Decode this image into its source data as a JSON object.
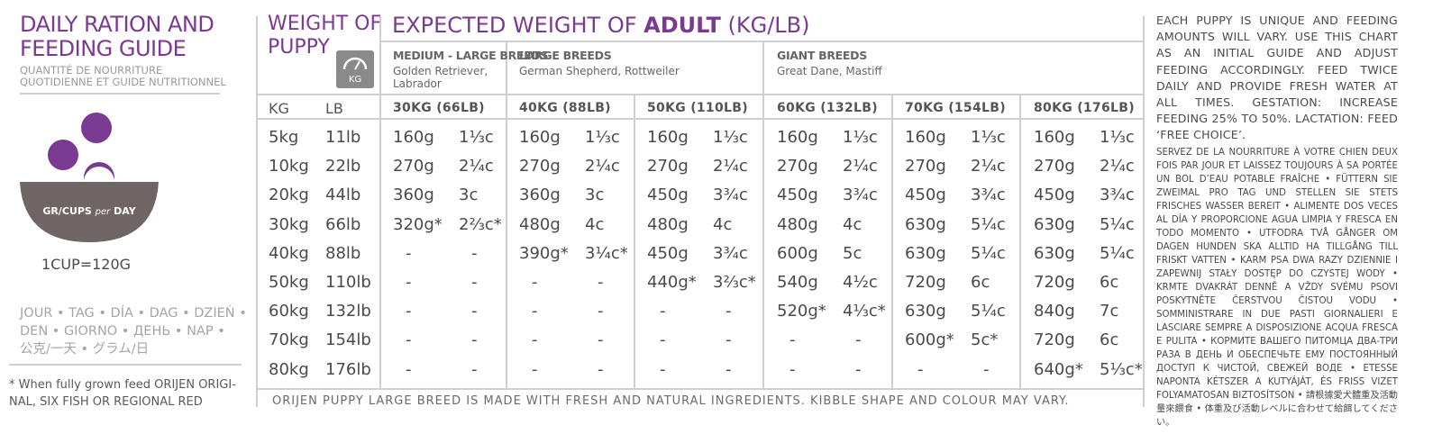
{
  "left": {
    "title_line1": "DAILY RATION AND",
    "title_line2": "FEEDING GUIDE",
    "subtitle_line1": "QUANTITÉ DE NOURRITURE",
    "subtitle_line2": "QUOTIDIENNE ET GUIDE NUTRITIONNEL",
    "bowl_label_gr": "GR/CUPS ",
    "bowl_label_per": "per",
    "bowl_label_day": " DAY",
    "cup_equivalence": "1CUP=120G",
    "languages_line1": "JOUR • TAG • DÍA • DAG • DZIEŃ •",
    "languages_line2": "DEN • GIORNO • ДЕНЬ •  NAP •",
    "languages_line3": "公克/一天 • グラム/日",
    "footnote_line1": "* When fully grown feed ORIJEN ORIGI-",
    "footnote_line2": "NAL, SIX FISH OR REGIONAL RED"
  },
  "weight_of_puppy": {
    "line1": "WEIGHT OF",
    "line2": "PUPPY",
    "badge_label": "KG",
    "kg_header": "KG",
    "lb_header": "LB"
  },
  "expected": {
    "title_prefix": "EXPECTED WEIGHT OF ",
    "title_bold": "ADULT",
    "title_suffix": " (KG/LB)"
  },
  "breeds": [
    {
      "name": "MEDIUM - LARGE BREEDS",
      "examples_line1": "Golden Retriever,",
      "examples_line2": "Labrador"
    },
    {
      "name": "LARGE BREEDS",
      "examples_line1": "German Shepherd, Rottweiler",
      "examples_line2": ""
    },
    {
      "name": "GIANT BREEDS",
      "examples_line1": "Great Dane, Mastiff",
      "examples_line2": ""
    }
  ],
  "adult_columns": [
    "30KG (66LB)",
    "40KG (88LB)",
    "50KG (110LB)",
    "60KG (132LB)",
    "70KG (154LB)",
    "80KG (176LB)"
  ],
  "rows": [
    {
      "kg": "5kg",
      "lb": "11lb",
      "cells": [
        [
          "160g",
          "1⅓c"
        ],
        [
          "160g",
          "1⅓c"
        ],
        [
          "160g",
          "1⅓c"
        ],
        [
          "160g",
          "1⅓c"
        ],
        [
          "160g",
          "1⅓c"
        ],
        [
          "160g",
          "1⅓c"
        ]
      ]
    },
    {
      "kg": "10kg",
      "lb": "22lb",
      "cells": [
        [
          "270g",
          "2¼c"
        ],
        [
          "270g",
          "2¼c"
        ],
        [
          "270g",
          "2¼c"
        ],
        [
          "270g",
          "2¼c"
        ],
        [
          "270g",
          "2¼c"
        ],
        [
          "270g",
          "2¼c"
        ]
      ]
    },
    {
      "kg": "20kg",
      "lb": "44lb",
      "cells": [
        [
          "360g",
          "3c"
        ],
        [
          "360g",
          "3c"
        ],
        [
          "450g",
          "3¾c"
        ],
        [
          "450g",
          "3¾c"
        ],
        [
          "450g",
          "3¾c"
        ],
        [
          "450g",
          "3¾c"
        ]
      ]
    },
    {
      "kg": "30kg",
      "lb": "66lb",
      "cells": [
        [
          "320g*",
          "2⅔c*"
        ],
        [
          "480g",
          "4c"
        ],
        [
          "480g",
          "4c"
        ],
        [
          "480g",
          "4c"
        ],
        [
          "630g",
          "5¼c"
        ],
        [
          "630g",
          "5¼c"
        ]
      ]
    },
    {
      "kg": "40kg",
      "lb": "88lb",
      "cells": [
        [
          "-",
          "-"
        ],
        [
          "390g*",
          "3¼c*"
        ],
        [
          "450g",
          "3¾c"
        ],
        [
          "600g",
          "5c"
        ],
        [
          "630g",
          "5¼c"
        ],
        [
          "630g",
          "5¼c"
        ]
      ]
    },
    {
      "kg": "50kg",
      "lb": "110lb",
      "cells": [
        [
          "-",
          "-"
        ],
        [
          "-",
          "-"
        ],
        [
          "440g*",
          "3⅔c*"
        ],
        [
          "540g",
          "4½c"
        ],
        [
          "720g",
          "6c"
        ],
        [
          "720g",
          "6c"
        ]
      ]
    },
    {
      "kg": "60kg",
      "lb": "132lb",
      "cells": [
        [
          "-",
          "-"
        ],
        [
          "-",
          "-"
        ],
        [
          "-",
          "-"
        ],
        [
          "520g*",
          "4⅓c*"
        ],
        [
          "630g",
          "5¼c"
        ],
        [
          "840g",
          "7c"
        ]
      ]
    },
    {
      "kg": "70kg",
      "lb": "154lb",
      "cells": [
        [
          "-",
          "-"
        ],
        [
          "-",
          "-"
        ],
        [
          "-",
          "-"
        ],
        [
          "-",
          "-"
        ],
        [
          "600g*",
          "5c*"
        ],
        [
          "720g",
          "6c"
        ]
      ]
    },
    {
      "kg": "80kg",
      "lb": "176lb",
      "cells": [
        [
          "-",
          "-"
        ],
        [
          "-",
          "-"
        ],
        [
          "-",
          "-"
        ],
        [
          "-",
          "-"
        ],
        [
          "-",
          "-"
        ],
        [
          "640g*",
          "5⅓c*"
        ]
      ]
    }
  ],
  "bottom_note": "ORIJEN PUPPY LARGE BREED IS MADE WITH FRESH AND NATURAL INGREDIENTS. KIBBLE SHAPE AND COLOUR MAY VARY.",
  "right": {
    "english": "EACH PUPPY IS UNIQUE AND FEEDING AMOUNTS WILL VARY. USE THIS CHART AS AN INITIAL GUIDE AND ADJUST FEEDING ACCORDINGLY. FEED TWICE DAILY AND PROVIDE FRESH WATER AT ALL TIMES. GESTATION: INCREASE FEEDING 25% TO 50%. LACTATION: FEED ‘FREE CHOICE’.",
    "multilingual": "SERVEZ DE LA NOURRITURE À VOTRE CHIEN DEUX FOIS PAR JOUR ET LAISSEZ TOUJOURS À SA PORTÉE UN BOL D’EAU POTABLE FRAÎCHE • FÜTTERN SIE ZWEIMAL PRO TAG UND STELLEN SIE STETS FRISCHES WASSER BEREIT • ALIMENTE DOS VECES AL DÍA Y PROPORCIONE AGUA LIMPIA Y FRESCA EN TODO MOMENTO • UTFODRA TVÅ GÅNGER OM DAGEN HUNDEN SKA ALLTID HA TILLGÅNG TILL FRISKT VATTEN • KARM PSA DWA RAZY DZIENNIE I ZAPEWNIJ STAŁY DOSTĘP DO CZYSTEJ WODY • KRMTE DVAKRÁT DENNĚ A VŽDY SVÉMU PSOVI POSKYTNĚTE ČERSTVOU ČISTOU VODU • SOMMINISTRARE IN DUE PASTI GIORNALIERI E LASCIARE SEMPRE A DISPOSIZIONE ACQUA FRESCA E PULITA • КОРМИТЕ ВАШЕГО ПИТОМЦА ДВА-ТРИ РАЗА В ДЕНЬ И ОБЕСПЕЧЬТЕ ЕМУ ПОСТОЯННЫЙ ДОСТУП К ЧИСТОЙ, СВЕЖЕЙ ВОДЕ • ETESSE NAPONTA KÉTSZER A KUTYÁJÁT, ÉS FRISS VIZET FOLYAMATOSAN BIZTOSÍTSON • 請根據愛犬體重及活動量來餵食 • 体重及び活動レベルに合わせて給餌してください。"
  },
  "colors": {
    "accent": "#7b3a91",
    "bowl": "#6f6564",
    "rule": "#cfcfcf"
  }
}
